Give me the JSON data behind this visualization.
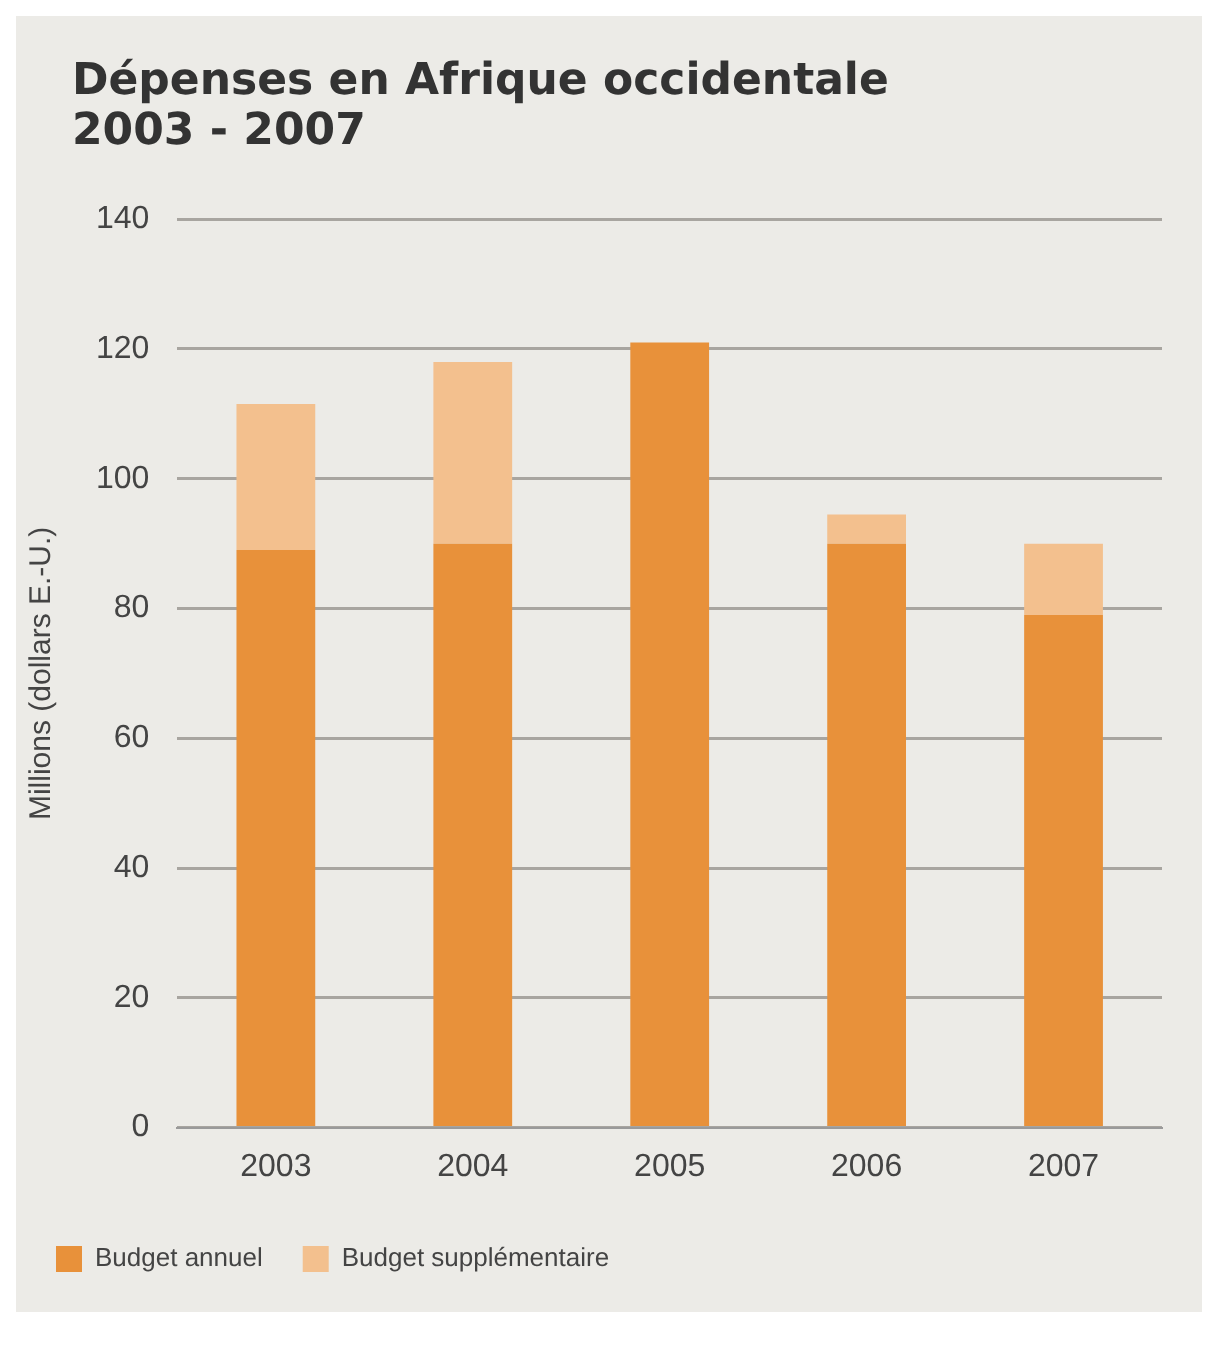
{
  "chart_data": {
    "type": "bar",
    "title": "Dépenses en Afrique occidentale\n2003 - 2007",
    "ylabel": "Millions (dollars E.-U.)",
    "categories": [
      "2003",
      "2004",
      "2005",
      "2006",
      "2007"
    ],
    "stacked": true,
    "series": [
      {
        "name": "Budget annuel",
        "color": "#e8913a",
        "values": [
          89,
          90,
          121,
          90,
          79
        ]
      },
      {
        "name": "Budget supplémentaire",
        "color": "#f3c08e",
        "values": [
          22.5,
          28,
          0,
          4.5,
          11
        ]
      }
    ],
    "ylim": [
      0,
      140
    ],
    "yticks": [
      0,
      20,
      40,
      60,
      80,
      100,
      120,
      140
    ],
    "grid": "y",
    "legend": "bottom left"
  }
}
